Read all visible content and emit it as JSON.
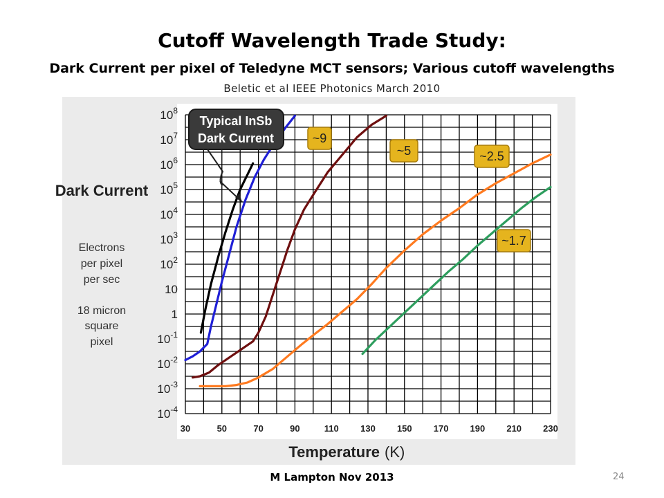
{
  "slide": {
    "title": "Cutoff Wavelength Trade Study:",
    "subtitle": "Dark Current per pixel of Teledyne MCT sensors; Various cutoff wavelengths",
    "citation": "Beletic et al IEEE Photonics March 2010",
    "footer": "M Lampton Nov 2013",
    "page_number": "24"
  },
  "chart_data": {
    "type": "line",
    "xlabel": "Temperature",
    "xlabel_unit": "(K)",
    "ylabel": "Dark Current",
    "ylabel_desc": [
      "Electrons",
      "per pixel",
      "per sec",
      "18 micron",
      "square",
      "pixel"
    ],
    "x_ticks": [
      30,
      50,
      70,
      90,
      110,
      130,
      150,
      170,
      190,
      210,
      230
    ],
    "y_scale": "log",
    "xlim": [
      30,
      230
    ],
    "ylim_exp": [
      -4,
      8
    ],
    "y_ticks": [
      {
        "base": "10",
        "exp": "8"
      },
      {
        "base": "10",
        "exp": "7"
      },
      {
        "base": "10",
        "exp": "6"
      },
      {
        "base": "10",
        "exp": "5"
      },
      {
        "base": "10",
        "exp": "4"
      },
      {
        "base": "10",
        "exp": "3"
      },
      {
        "base": "10",
        "exp": "2"
      },
      {
        "base": "10",
        "exp": ""
      },
      {
        "base": "1",
        "exp": ""
      },
      {
        "base": "10",
        "exp": "-1"
      },
      {
        "base": "10",
        "exp": "-2"
      },
      {
        "base": "10",
        "exp": "-3"
      },
      {
        "base": "10",
        "exp": "-4"
      }
    ],
    "grid": true,
    "callout": {
      "lines": [
        "Typical InSb",
        "Dark Current"
      ]
    },
    "series": [
      {
        "name": "Typical InSb",
        "color": "#000000",
        "points": [
          [
            38.5,
            -0.75
          ],
          [
            41,
            0.2
          ],
          [
            44,
            1.2
          ],
          [
            48,
            2.3
          ],
          [
            52,
            3.3
          ],
          [
            56,
            4.2
          ],
          [
            60,
            5.0
          ],
          [
            64,
            5.6
          ],
          [
            67,
            6.05
          ]
        ]
      },
      {
        "name": "~9",
        "label": "~9",
        "color": "#1f1fd6",
        "points": [
          [
            30,
            -1.85
          ],
          [
            34,
            -1.7
          ],
          [
            38,
            -1.5
          ],
          [
            42,
            -1.2
          ],
          [
            44,
            -0.5
          ],
          [
            47,
            0.4
          ],
          [
            50,
            1.3
          ],
          [
            54,
            2.4
          ],
          [
            58,
            3.5
          ],
          [
            63,
            4.6
          ],
          [
            68,
            5.5
          ],
          [
            73,
            6.2
          ],
          [
            79,
            6.9
          ],
          [
            85,
            7.5
          ],
          [
            90,
            7.96
          ]
        ]
      },
      {
        "name": "~5",
        "label": "~5",
        "color": "#6e0f0f",
        "points": [
          [
            34,
            -2.55
          ],
          [
            38,
            -2.5
          ],
          [
            43,
            -2.35
          ],
          [
            48,
            -2.05
          ],
          [
            55,
            -1.7
          ],
          [
            62,
            -1.35
          ],
          [
            67,
            -1.1
          ],
          [
            70,
            -0.75
          ],
          [
            74,
            -0.1
          ],
          [
            78,
            0.8
          ],
          [
            82,
            1.7
          ],
          [
            86,
            2.6
          ],
          [
            90,
            3.4
          ],
          [
            95,
            4.2
          ],
          [
            101,
            4.9
          ],
          [
            108,
            5.7
          ],
          [
            116,
            6.4
          ],
          [
            124,
            7.1
          ],
          [
            132,
            7.6
          ],
          [
            140,
            7.96
          ]
        ]
      },
      {
        "name": "~2.5",
        "label": "~2.5",
        "color": "#ff7a1f",
        "points": [
          [
            38,
            -2.9
          ],
          [
            45,
            -2.9
          ],
          [
            52,
            -2.9
          ],
          [
            58,
            -2.85
          ],
          [
            64,
            -2.75
          ],
          [
            70,
            -2.55
          ],
          [
            78,
            -2.2
          ],
          [
            86,
            -1.7
          ],
          [
            94,
            -1.2
          ],
          [
            100,
            -0.85
          ],
          [
            108,
            -0.4
          ],
          [
            116,
            0.1
          ],
          [
            124,
            0.6
          ],
          [
            132,
            1.2
          ],
          [
            140,
            1.85
          ],
          [
            150,
            2.55
          ],
          [
            160,
            3.2
          ],
          [
            170,
            3.75
          ],
          [
            180,
            4.25
          ],
          [
            190,
            4.8
          ],
          [
            200,
            5.25
          ],
          [
            210,
            5.65
          ],
          [
            220,
            6.05
          ],
          [
            230,
            6.4
          ]
        ]
      },
      {
        "name": "~1.7",
        "label": "~1.7",
        "color": "#2e9e5e",
        "points": [
          [
            127,
            -1.6
          ],
          [
            134,
            -1.05
          ],
          [
            142,
            -0.5
          ],
          [
            150,
            0.05
          ],
          [
            158,
            0.6
          ],
          [
            166,
            1.15
          ],
          [
            174,
            1.7
          ],
          [
            182,
            2.2
          ],
          [
            190,
            2.75
          ],
          [
            198,
            3.25
          ],
          [
            206,
            3.75
          ],
          [
            214,
            4.25
          ],
          [
            222,
            4.7
          ],
          [
            230,
            5.1
          ]
        ]
      }
    ]
  }
}
